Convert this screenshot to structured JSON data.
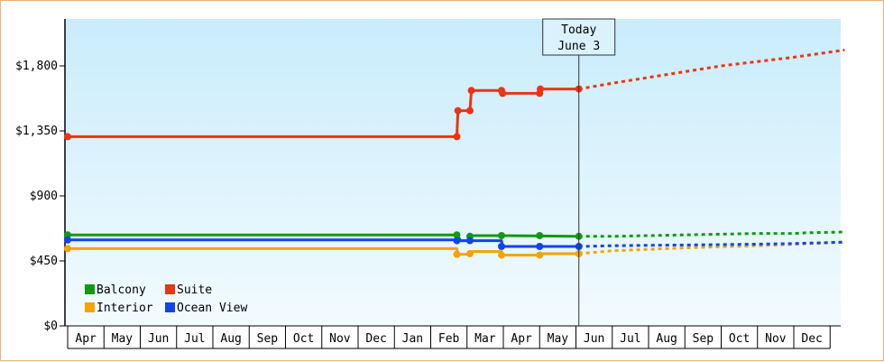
{
  "chart_data": {
    "type": "line",
    "ylim": [
      0,
      2125
    ],
    "y_ticks": [
      {
        "value": 0,
        "label": "$0"
      },
      {
        "value": 450,
        "label": "$450"
      },
      {
        "value": 900,
        "label": "$900"
      },
      {
        "value": 1350,
        "label": "$1,350"
      },
      {
        "value": 1800,
        "label": "$1,800"
      }
    ],
    "x_months": [
      "Apr",
      "May",
      "Jun",
      "Jul",
      "Aug",
      "Sep",
      "Oct",
      "Nov",
      "Dec",
      "Jan",
      "Feb",
      "Mar",
      "Apr",
      "May",
      "Jun",
      "Jul",
      "Aug",
      "Sep",
      "Oct",
      "Nov",
      "Dec"
    ],
    "today": {
      "line1": "Today",
      "line2": "June 3",
      "x": 14.08
    },
    "grid": false,
    "legend_position": "bottom-left",
    "series": [
      {
        "name": "Balcony",
        "color": "#119911",
        "points": [
          [
            0.0,
            630
          ],
          [
            10.72,
            630
          ],
          [
            10.83,
            590
          ],
          [
            11.08,
            590
          ],
          [
            11.12,
            625
          ],
          [
            11.95,
            625
          ],
          [
            13.0,
            623
          ],
          [
            14.08,
            620
          ]
        ],
        "markers": [
          [
            0.0,
            630
          ],
          [
            10.72,
            630
          ],
          [
            11.08,
            620
          ],
          [
            11.95,
            625
          ],
          [
            13.0,
            625
          ],
          [
            14.08,
            620
          ]
        ],
        "forecast": [
          [
            14.08,
            620
          ],
          [
            15.0,
            620
          ],
          [
            16.0,
            625
          ],
          [
            17.0,
            630
          ],
          [
            18.0,
            635
          ],
          [
            19.0,
            640
          ],
          [
            20.0,
            640
          ],
          [
            20.4,
            645
          ],
          [
            21.4,
            650
          ]
        ]
      },
      {
        "name": "Suite",
        "color": "#ee3311",
        "points": [
          [
            0.0,
            1310
          ],
          [
            10.72,
            1310
          ],
          [
            10.75,
            1490
          ],
          [
            11.08,
            1490
          ],
          [
            11.12,
            1630
          ],
          [
            11.95,
            1630
          ],
          [
            11.98,
            1610
          ],
          [
            13.0,
            1610
          ],
          [
            13.02,
            1640
          ],
          [
            14.08,
            1640
          ]
        ],
        "markers": [
          [
            0.0,
            1310
          ],
          [
            10.72,
            1310
          ],
          [
            10.75,
            1490
          ],
          [
            11.08,
            1490
          ],
          [
            11.12,
            1630
          ],
          [
            11.95,
            1630
          ],
          [
            11.98,
            1610
          ],
          [
            13.0,
            1610
          ],
          [
            13.02,
            1640
          ],
          [
            14.08,
            1640
          ]
        ],
        "forecast": [
          [
            14.08,
            1640
          ],
          [
            15.0,
            1680
          ],
          [
            16.0,
            1720
          ],
          [
            17.0,
            1760
          ],
          [
            18.0,
            1800
          ],
          [
            19.0,
            1830
          ],
          [
            20.0,
            1860
          ],
          [
            21.4,
            1910
          ]
        ]
      },
      {
        "name": "Interior",
        "color": "#f5a300",
        "points": [
          [
            0.0,
            535
          ],
          [
            10.72,
            535
          ],
          [
            10.75,
            495
          ],
          [
            11.08,
            495
          ],
          [
            11.12,
            515
          ],
          [
            11.95,
            515
          ],
          [
            11.98,
            490
          ],
          [
            13.0,
            490
          ],
          [
            13.02,
            500
          ],
          [
            14.08,
            500
          ]
        ],
        "markers": [
          [
            0.0,
            535
          ],
          [
            10.72,
            495
          ],
          [
            11.08,
            500
          ],
          [
            11.95,
            490
          ],
          [
            13.0,
            490
          ],
          [
            14.08,
            500
          ]
        ],
        "forecast": [
          [
            14.08,
            500
          ],
          [
            15.0,
            520
          ],
          [
            16.0,
            530
          ],
          [
            17.0,
            540
          ],
          [
            18.0,
            548
          ],
          [
            19.0,
            555
          ],
          [
            20.0,
            565
          ],
          [
            21.4,
            580
          ]
        ]
      },
      {
        "name": "Ocean View",
        "color": "#1144ee",
        "points": [
          [
            0.0,
            595
          ],
          [
            10.72,
            595
          ],
          [
            10.75,
            590
          ],
          [
            11.08,
            590
          ],
          [
            11.12,
            590
          ],
          [
            11.95,
            590
          ],
          [
            11.98,
            550
          ],
          [
            13.0,
            550
          ],
          [
            14.08,
            550
          ]
        ],
        "markers": [
          [
            0.0,
            595
          ],
          [
            10.72,
            590
          ],
          [
            11.08,
            590
          ],
          [
            11.95,
            550
          ],
          [
            13.0,
            550
          ],
          [
            14.08,
            550
          ]
        ],
        "forecast": [
          [
            14.08,
            550
          ],
          [
            15.0,
            555
          ],
          [
            16.0,
            558
          ],
          [
            17.0,
            560
          ],
          [
            18.0,
            563
          ],
          [
            19.0,
            566
          ],
          [
            20.0,
            570
          ],
          [
            21.4,
            580
          ]
        ]
      }
    ]
  },
  "legend": {
    "items": [
      {
        "label": "Balcony",
        "color": "#119911"
      },
      {
        "label": "Suite",
        "color": "#ee3311"
      },
      {
        "label": "Interior",
        "color": "#f5a300"
      },
      {
        "label": "Ocean View",
        "color": "#1144ee"
      }
    ]
  }
}
